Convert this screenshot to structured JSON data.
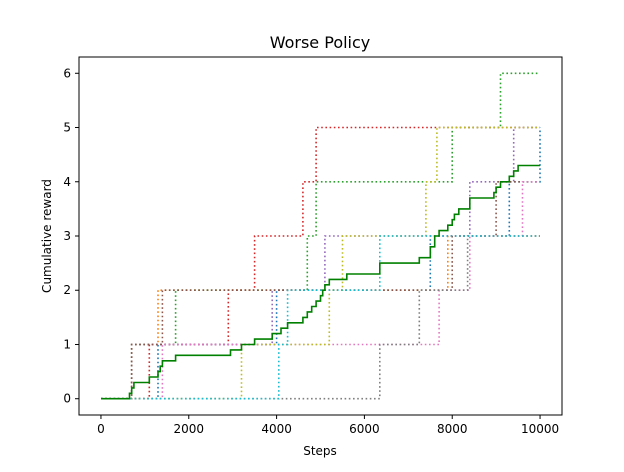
{
  "chart_data": {
    "type": "line",
    "title": "Worse Policy",
    "xlabel": "Steps",
    "ylabel": "Cumulative reward",
    "xlim": [
      -500,
      10500
    ],
    "ylim": [
      -0.3,
      6.3
    ],
    "xticks": [
      0,
      2000,
      4000,
      6000,
      8000,
      10000
    ],
    "yticks": [
      0,
      1,
      2,
      3,
      4,
      5,
      6
    ],
    "grid": false,
    "legend": "none",
    "series": [
      {
        "color": "#1f77b4",
        "style": "dotted",
        "step": true,
        "x": [
          0,
          1300,
          4000,
          7500,
          9300,
          10000
        ],
        "y": [
          0,
          1,
          2,
          3,
          4,
          5
        ]
      },
      {
        "color": "#ff7f0e",
        "style": "dotted",
        "step": true,
        "x": [
          0,
          700,
          1300,
          7900,
          10000
        ],
        "y": [
          0,
          1,
          2,
          3,
          3
        ]
      },
      {
        "color": "#2ca02c",
        "style": "dotted",
        "step": true,
        "x": [
          0,
          700,
          1700,
          4700,
          4900,
          8000,
          9100,
          10000
        ],
        "y": [
          0,
          1,
          2,
          3,
          4,
          5,
          6,
          6
        ]
      },
      {
        "color": "#d62728",
        "style": "dotted",
        "step": true,
        "x": [
          0,
          1100,
          2900,
          3500,
          4600,
          4900,
          10000
        ],
        "y": [
          0,
          1,
          2,
          3,
          4,
          5,
          5
        ]
      },
      {
        "color": "#9467bd",
        "style": "dotted",
        "step": true,
        "x": [
          0,
          700,
          3900,
          5100,
          8400,
          9400,
          10000
        ],
        "y": [
          0,
          1,
          2,
          3,
          4,
          5,
          5
        ]
      },
      {
        "color": "#8c564b",
        "style": "dotted",
        "step": true,
        "x": [
          0,
          700,
          1400,
          7300,
          8000,
          9000,
          10000
        ],
        "y": [
          0,
          1,
          2,
          2,
          3,
          4,
          4
        ]
      },
      {
        "color": "#e377c2",
        "style": "dotted",
        "step": true,
        "x": [
          0,
          1400,
          7700,
          8400,
          9600,
          10000
        ],
        "y": [
          0,
          1,
          2,
          3,
          4,
          4
        ]
      },
      {
        "color": "#7f7f7f",
        "style": "dotted",
        "step": true,
        "x": [
          0,
          6350,
          7250,
          8350,
          10000
        ],
        "y": [
          0,
          1,
          2,
          3,
          3
        ]
      },
      {
        "color": "#bcbd22",
        "style": "dotted",
        "step": true,
        "x": [
          0,
          3200,
          5200,
          5500,
          7400,
          7650,
          10000
        ],
        "y": [
          0,
          1,
          2,
          3,
          4,
          5,
          5
        ]
      },
      {
        "color": "#17becf",
        "style": "dotted",
        "step": true,
        "x": [
          0,
          4050,
          4250,
          6350,
          10000
        ],
        "y": [
          0,
          1,
          2,
          3,
          3
        ]
      },
      {
        "color": "#008000",
        "style": "solid",
        "step": true,
        "x": [
          0,
          650,
          700,
          750,
          1100,
          1300,
          1350,
          1400,
          1700,
          2950,
          3200,
          3500,
          3900,
          4100,
          4250,
          4600,
          4700,
          4800,
          4900,
          5000,
          5050,
          5100,
          5200,
          5600,
          6350,
          7250,
          7500,
          7600,
          7700,
          7900,
          8000,
          8050,
          8100,
          8150,
          8400,
          8950,
          9000,
          9100,
          9200,
          9300,
          9400,
          9500,
          9650,
          10000
        ],
        "y": [
          0,
          0.1,
          0.2,
          0.3,
          0.4,
          0.5,
          0.6,
          0.7,
          0.8,
          0.9,
          1.0,
          1.1,
          1.2,
          1.3,
          1.4,
          1.5,
          1.6,
          1.7,
          1.8,
          1.9,
          2.0,
          2.1,
          2.2,
          2.3,
          2.5,
          2.6,
          2.8,
          3.0,
          3.1,
          3.2,
          3.3,
          3.4,
          3.4,
          3.5,
          3.7,
          3.8,
          3.9,
          4.0,
          4.0,
          4.1,
          4.2,
          4.3,
          4.3,
          4.3
        ]
      }
    ]
  }
}
